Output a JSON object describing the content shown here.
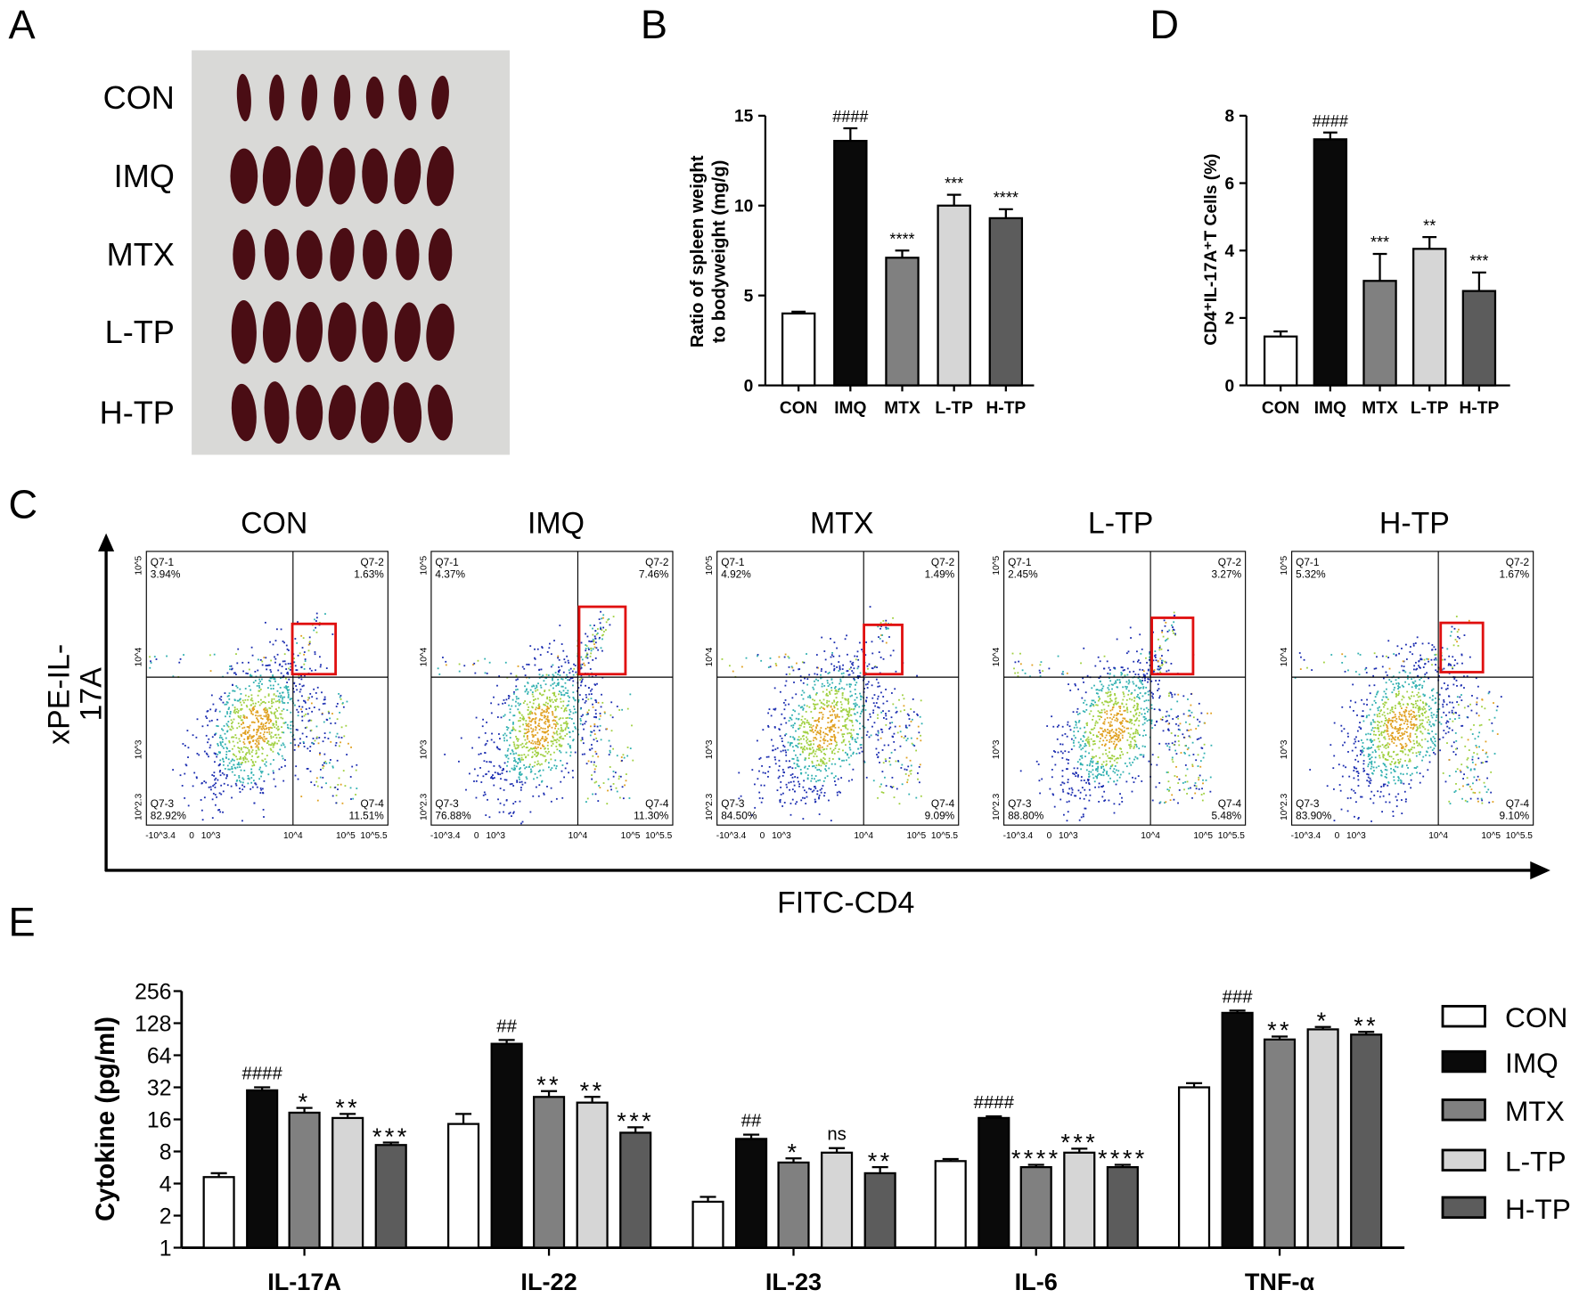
{
  "panels": {
    "A": "A",
    "B": "B",
    "C": "C",
    "D": "D",
    "E": "E"
  },
  "groups": [
    "CON",
    "IMQ",
    "MTX",
    "L-TP",
    "H-TP"
  ],
  "colors": {
    "CON": "#ffffff",
    "IMQ": "#0a0a0a",
    "MTX": "#808080",
    "L-TP": "#d6d6d6",
    "H-TP": "#5c5c5c",
    "gate": "#e01010"
  },
  "panel_a": {
    "row_labels": [
      "CON",
      "IMQ",
      "MTX",
      "L-TP",
      "H-TP"
    ]
  },
  "panel_c": {
    "y_axis_label_lines": [
      "xPE-IL-",
      "17A"
    ],
    "x_axis_label": "FITC-CD4",
    "y_ticks": [
      "10^5",
      "10^4",
      "10^3",
      "10^2.3"
    ],
    "x_ticks": [
      "-10^3.4",
      "0",
      "10^3",
      "10^4",
      "10^5",
      "10^5.5"
    ],
    "plots": [
      {
        "title": "CON",
        "q1": "Q7-1",
        "q1_pct": "3.94%",
        "q2": "Q7-2",
        "q2_pct": "1.63%",
        "q3": "Q7-3",
        "q3_pct": "82.92%",
        "q4": "Q7-4",
        "q4_pct": "11.51%"
      },
      {
        "title": "IMQ",
        "q1": "Q7-1",
        "q1_pct": "4.37%",
        "q2": "Q7-2",
        "q2_pct": "7.46%",
        "q3": "Q7-3",
        "q3_pct": "76.88%",
        "q4": "Q7-4",
        "q4_pct": "11.30%"
      },
      {
        "title": "MTX",
        "q1": "Q7-1",
        "q1_pct": "4.92%",
        "q2": "Q7-2",
        "q2_pct": "1.49%",
        "q3": "Q7-3",
        "q3_pct": "84.50%",
        "q4": "Q7-4",
        "q4_pct": "9.09%"
      },
      {
        "title": "L-TP",
        "q1": "Q7-1",
        "q1_pct": "2.45%",
        "q2": "Q7-2",
        "q2_pct": "3.27%",
        "q3": "Q7-3",
        "q3_pct": "88.80%",
        "q4": "Q7-4",
        "q4_pct": "5.48%"
      },
      {
        "title": "H-TP",
        "q1": "Q7-1",
        "q1_pct": "5.32%",
        "q2": "Q7-2",
        "q2_pct": "1.67%",
        "q3": "Q7-3",
        "q3_pct": "83.90%",
        "q4": "Q7-4",
        "q4_pct": "9.10%"
      }
    ]
  },
  "chart_data": [
    {
      "id": "B",
      "type": "bar",
      "categories": [
        "CON",
        "IMQ",
        "MTX",
        "L-TP",
        "H-TP"
      ],
      "values": [
        4.0,
        13.6,
        7.1,
        10.0,
        9.3
      ],
      "errors": [
        0.1,
        0.7,
        0.4,
        0.6,
        0.5
      ],
      "significance": [
        "",
        "####",
        "****",
        "***",
        "****"
      ],
      "ylabel_lines": [
        "Ratio of spleen weight",
        "to bodyweight (mg/g)"
      ],
      "ylim": [
        0,
        15
      ],
      "yticks": [
        0,
        5,
        10,
        15
      ]
    },
    {
      "id": "D",
      "type": "bar",
      "categories": [
        "CON",
        "IMQ",
        "MTX",
        "L-TP",
        "H-TP"
      ],
      "values": [
        1.45,
        7.3,
        3.1,
        4.05,
        2.8
      ],
      "errors": [
        0.15,
        0.2,
        0.8,
        0.35,
        0.55
      ],
      "significance": [
        "",
        "####",
        "***",
        "**",
        "***"
      ],
      "ylabel": "CD4⁺IL-17A⁺T Cells (%)",
      "ylim": [
        0,
        8
      ],
      "yticks": [
        0,
        2,
        4,
        6,
        8
      ]
    },
    {
      "id": "E",
      "type": "bar",
      "yscale": "log2",
      "categories": [
        "IL-17A",
        "IL-22",
        "IL-23",
        "IL-6",
        "TNF-α"
      ],
      "series": [
        {
          "name": "CON",
          "values": [
            4.6,
            14.5,
            2.7,
            6.5,
            32
          ],
          "errors": [
            0.4,
            3.5,
            0.3,
            0.3,
            3
          ]
        },
        {
          "name": "IMQ",
          "values": [
            30,
            82,
            10.5,
            16.5,
            160
          ],
          "errors": [
            2,
            7,
            1,
            0.6,
            8
          ]
        },
        {
          "name": "MTX",
          "values": [
            18.5,
            26,
            6.3,
            5.7,
            90
          ],
          "errors": [
            2,
            3.5,
            0.6,
            0.3,
            6
          ]
        },
        {
          "name": "L-TP",
          "values": [
            16.5,
            23,
            7.8,
            7.8,
            112
          ],
          "errors": [
            1.5,
            3,
            0.8,
            0.7,
            6
          ]
        },
        {
          "name": "H-TP",
          "values": [
            9.2,
            12,
            5,
            5.7,
            100
          ],
          "errors": [
            0.5,
            1.5,
            0.7,
            0.3,
            6
          ]
        }
      ],
      "significance": [
        [
          "",
          "####",
          "*",
          "**",
          "***"
        ],
        [
          "",
          "##",
          "**",
          "**",
          "***"
        ],
        [
          "",
          "##",
          "*",
          "ns",
          "**"
        ],
        [
          "",
          "####",
          "****",
          "***",
          "****"
        ],
        [
          "",
          "###",
          "**",
          "*",
          "**"
        ]
      ],
      "ylabel": "Cytokine (pg/ml)",
      "ylim": [
        1,
        256
      ],
      "yticks": [
        1,
        2,
        4,
        8,
        16,
        32,
        64,
        128,
        256
      ],
      "legend": [
        "CON",
        "IMQ",
        "MTX",
        "L-TP",
        "H-TP"
      ],
      "legend_position": "right"
    }
  ]
}
